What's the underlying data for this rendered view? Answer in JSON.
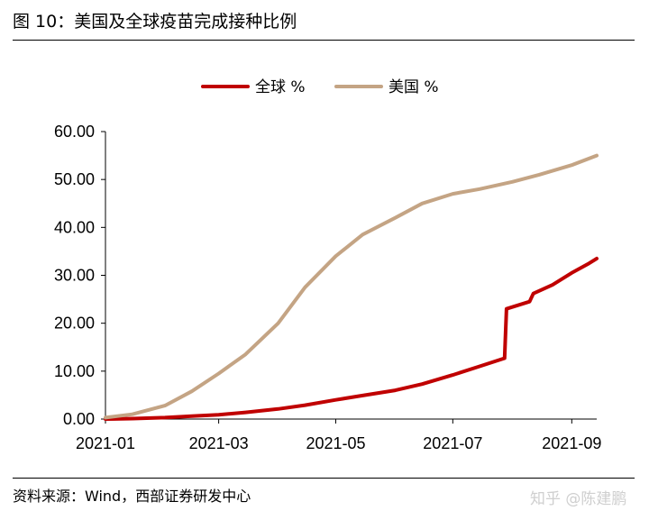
{
  "figure": {
    "title": "图 10：美国及全球疫苗完成接种比例",
    "source": "资料来源：Wind，西部证券研发中心",
    "watermark": "知乎 @陈建鹏"
  },
  "chart_data": {
    "type": "line",
    "title": "",
    "xlabel": "",
    "ylabel": "",
    "x_ticks": [
      "2021-01",
      "2021-03",
      "2021-05",
      "2021-07",
      "2021-09"
    ],
    "y_ticks": [
      "0.00",
      "10.00",
      "20.00",
      "30.00",
      "40.00",
      "50.00",
      "60.00"
    ],
    "ylim": [
      0,
      60
    ],
    "xlim": [
      "2021-01-01",
      "2021-09-14"
    ],
    "grid": false,
    "legend_position": "top-center",
    "series": [
      {
        "name": "全球 %",
        "color": "#c00000",
        "points": [
          [
            "2021-01-01",
            0.0
          ],
          [
            "2021-01-15",
            0.1
          ],
          [
            "2021-02-01",
            0.3
          ],
          [
            "2021-02-15",
            0.6
          ],
          [
            "2021-03-01",
            0.9
          ],
          [
            "2021-03-15",
            1.4
          ],
          [
            "2021-04-01",
            2.1
          ],
          [
            "2021-04-15",
            2.9
          ],
          [
            "2021-05-01",
            4.0
          ],
          [
            "2021-05-15",
            4.9
          ],
          [
            "2021-06-01",
            6.0
          ],
          [
            "2021-06-15",
            7.3
          ],
          [
            "2021-07-01",
            9.2
          ],
          [
            "2021-07-15",
            11.0
          ],
          [
            "2021-07-28",
            12.7
          ],
          [
            "2021-07-29",
            23.0
          ],
          [
            "2021-08-10",
            24.5
          ],
          [
            "2021-08-12",
            26.2
          ],
          [
            "2021-08-22",
            28.0
          ],
          [
            "2021-09-01",
            30.5
          ],
          [
            "2021-09-10",
            32.5
          ],
          [
            "2021-09-14",
            33.5
          ]
        ]
      },
      {
        "name": "美国 %",
        "color": "#c4a484",
        "points": [
          [
            "2021-01-01",
            0.3
          ],
          [
            "2021-01-15",
            1.0
          ],
          [
            "2021-02-01",
            2.8
          ],
          [
            "2021-02-15",
            5.8
          ],
          [
            "2021-03-01",
            9.5
          ],
          [
            "2021-03-15",
            13.5
          ],
          [
            "2021-04-01",
            20.0
          ],
          [
            "2021-04-15",
            27.5
          ],
          [
            "2021-05-01",
            34.0
          ],
          [
            "2021-05-15",
            38.5
          ],
          [
            "2021-06-01",
            42.0
          ],
          [
            "2021-06-15",
            45.0
          ],
          [
            "2021-07-01",
            47.0
          ],
          [
            "2021-07-15",
            48.0
          ],
          [
            "2021-08-01",
            49.5
          ],
          [
            "2021-08-15",
            51.0
          ],
          [
            "2021-09-01",
            53.0
          ],
          [
            "2021-09-14",
            55.0
          ]
        ]
      }
    ]
  }
}
